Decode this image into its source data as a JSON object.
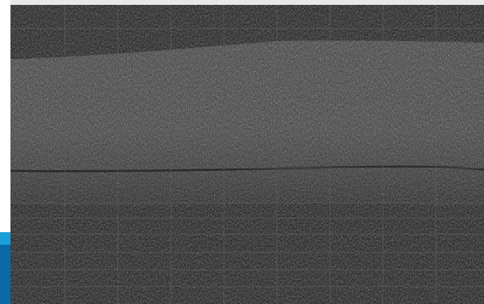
{
  "viewer": {
    "kind": "grayscale-cross-section-scan",
    "background_color": "#121212",
    "tissue_color_bright": "#8a8a8a",
    "tissue_color_mid": "#5a5a5a",
    "grid_color": "#5c5c5c",
    "grid": true
  },
  "side_panel": {
    "tab_color": "#0b6aa6",
    "tab_accent_color": "#1aa0d6"
  }
}
